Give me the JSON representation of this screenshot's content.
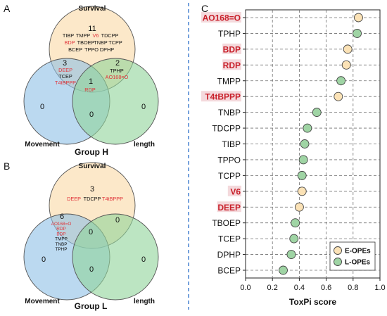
{
  "panel_labels": {
    "a": "A",
    "b": "B",
    "c": "C"
  },
  "colors": {
    "survival": "#fce4c0",
    "movement": "#8ec0e6",
    "length": "#8fd49a",
    "red_text": "#e0343a",
    "highlight_bg": "#f4d9dc",
    "divider": "#2b6fc9",
    "e_opes": "#fbe2b6",
    "l_opes": "#9fd4a4",
    "marker_edge": "#444444",
    "grid": "#707070"
  },
  "venn_a": {
    "group_label": "Group H",
    "set_labels": {
      "survival": "Survival",
      "movement": "Movement",
      "length": "length"
    },
    "counts": {
      "survival_only": "11",
      "movement_only": "0",
      "length_only": "0",
      "survival_movement": "3",
      "survival_length": "2",
      "movement_length": "0",
      "all": "1"
    },
    "survival_only_rows": [
      [
        {
          "t": "TIBP",
          "red": false
        },
        {
          "t": "TMPP",
          "red": false
        },
        {
          "t": "V6",
          "red": true
        },
        {
          "t": "TDCPP",
          "red": false
        }
      ],
      [
        {
          "t": "BDP",
          "red": true
        },
        {
          "t": "TBOEP",
          "red": false
        },
        {
          "t": "TNBP",
          "red": false
        },
        {
          "t": "TCPP",
          "red": false
        }
      ],
      [
        {
          "t": "BCEP",
          "red": false
        },
        {
          "t": "TPPO",
          "red": false
        },
        {
          "t": "DPHP",
          "red": false
        }
      ]
    ],
    "survival_movement_items": [
      {
        "t": "DEEP",
        "red": true
      },
      {
        "t": "TCEP",
        "red": false
      },
      {
        "t": "T4tBPPP",
        "red": true
      }
    ],
    "survival_length_items": [
      {
        "t": "TPHP",
        "red": false
      },
      {
        "t": "AO168=O",
        "red": true
      }
    ],
    "all_items": [
      {
        "t": "RDP",
        "red": true
      }
    ]
  },
  "venn_b": {
    "group_label": "Group L",
    "set_labels": {
      "survival": "Survival",
      "movement": "Movement",
      "length": "length"
    },
    "counts": {
      "survival_only": "3",
      "movement_only": "0",
      "length_only": "0",
      "survival_movement": "6",
      "survival_length": "0",
      "movement_length": "0",
      "all": "0"
    },
    "survival_only_items": [
      {
        "t": "DEEP",
        "red": true
      },
      {
        "t": "TDCPP",
        "red": false
      },
      {
        "t": "T4tBPPP",
        "red": true
      }
    ],
    "survival_movement_items": [
      {
        "t": "AO168=O",
        "red": true
      },
      {
        "t": "RDP",
        "red": true
      },
      {
        "t": "BDP",
        "red": true
      },
      {
        "t": "TMPP",
        "red": false
      },
      {
        "t": "TNBP",
        "red": false
      },
      {
        "t": "TPHP",
        "red": false
      }
    ]
  },
  "chart_data": {
    "type": "scatter",
    "title": "",
    "xlabel": "ToxPi score",
    "ylabel": "",
    "xlim": [
      0.0,
      1.0
    ],
    "x_ticks": [
      "0.0",
      "0.2",
      "0.4",
      "0.6",
      "0.8",
      "1.0"
    ],
    "grid": "dashed",
    "legend_position": "bottom-right",
    "series_legend": [
      {
        "name": "E-OPEs",
        "color": "#fbe2b6"
      },
      {
        "name": "L-OPEs",
        "color": "#9fd4a4"
      }
    ],
    "points": [
      {
        "label": "AO168=O",
        "value": 0.84,
        "group": "E-OPEs",
        "highlight": true
      },
      {
        "label": "TPHP",
        "value": 0.83,
        "group": "L-OPEs",
        "highlight": false
      },
      {
        "label": "BDP",
        "value": 0.76,
        "group": "E-OPEs",
        "highlight": true
      },
      {
        "label": "RDP",
        "value": 0.75,
        "group": "E-OPEs",
        "highlight": true
      },
      {
        "label": "TMPP",
        "value": 0.71,
        "group": "L-OPEs",
        "highlight": false
      },
      {
        "label": "T4tBPPP",
        "value": 0.69,
        "group": "E-OPEs",
        "highlight": true
      },
      {
        "label": "TNBP",
        "value": 0.53,
        "group": "L-OPEs",
        "highlight": false
      },
      {
        "label": "TDCPP",
        "value": 0.46,
        "group": "L-OPEs",
        "highlight": false
      },
      {
        "label": "TIBP",
        "value": 0.44,
        "group": "L-OPEs",
        "highlight": false
      },
      {
        "label": "TPPO",
        "value": 0.43,
        "group": "L-OPEs",
        "highlight": false
      },
      {
        "label": "TCPP",
        "value": 0.42,
        "group": "L-OPEs",
        "highlight": false
      },
      {
        "label": "V6",
        "value": 0.42,
        "group": "E-OPEs",
        "highlight": true
      },
      {
        "label": "DEEP",
        "value": 0.4,
        "group": "E-OPEs",
        "highlight": true
      },
      {
        "label": "TBOEP",
        "value": 0.37,
        "group": "L-OPEs",
        "highlight": false
      },
      {
        "label": "TCEP",
        "value": 0.36,
        "group": "L-OPEs",
        "highlight": false
      },
      {
        "label": "DPHP",
        "value": 0.34,
        "group": "L-OPEs",
        "highlight": false
      },
      {
        "label": "BCEP",
        "value": 0.28,
        "group": "L-OPEs",
        "highlight": false
      }
    ]
  }
}
